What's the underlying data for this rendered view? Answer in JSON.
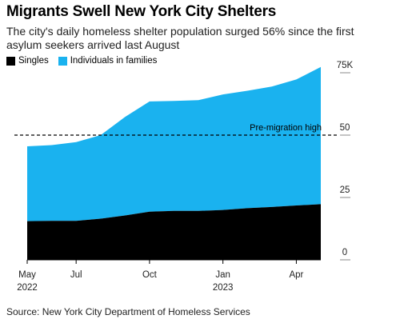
{
  "title": "Migrants Swell New York City Shelters",
  "subtitle": "The city's daily homeless shelter population surged 56% since the first asylum seekers arrived last August",
  "legend": [
    {
      "label": "Singles",
      "color": "#000000"
    },
    {
      "label": "Individuals in families",
      "color": "#1ab2ef"
    }
  ],
  "source": "Source: New York City Department of Homeless Services",
  "chart_data": {
    "type": "area",
    "stacked": true,
    "x_unit": "month",
    "x_ticks": [
      {
        "label": "May",
        "sub": "2022",
        "x": "2022-05"
      },
      {
        "label": "Jul",
        "sub": "",
        "x": "2022-07"
      },
      {
        "label": "Oct",
        "sub": "",
        "x": "2022-10"
      },
      {
        "label": "Jan",
        "sub": "2023",
        "x": "2023-01"
      },
      {
        "label": "Apr",
        "sub": "",
        "x": "2023-04"
      }
    ],
    "y_ticks": [
      {
        "label": "75K",
        "value": 75
      },
      {
        "label": "50",
        "value": 50
      },
      {
        "label": "25",
        "value": 25
      },
      {
        "label": "0",
        "value": 0
      }
    ],
    "ylim": [
      0,
      75
    ],
    "axis_side": "right",
    "annotation": {
      "label": "Pre-migration high",
      "value": 50,
      "style": "dashed"
    },
    "x": [
      "2022-05",
      "2022-06",
      "2022-07",
      "2022-08",
      "2022-09",
      "2022-10",
      "2022-11",
      "2022-12",
      "2023-01",
      "2023-02",
      "2023-03",
      "2023-04",
      "2023-05"
    ],
    "series": [
      {
        "name": "Singles",
        "color": "#000000",
        "values": [
          15.5,
          15.6,
          15.6,
          16.5,
          17.8,
          19.3,
          19.6,
          19.6,
          20.0,
          20.7,
          21.2,
          21.8,
          22.3
        ]
      },
      {
        "name": "Individuals in families",
        "color": "#1ab2ef",
        "values": [
          30.0,
          30.4,
          31.6,
          33.5,
          39.5,
          44.2,
          44.1,
          44.4,
          46.3,
          47.1,
          48.3,
          50.5,
          55.0
        ]
      }
    ]
  }
}
